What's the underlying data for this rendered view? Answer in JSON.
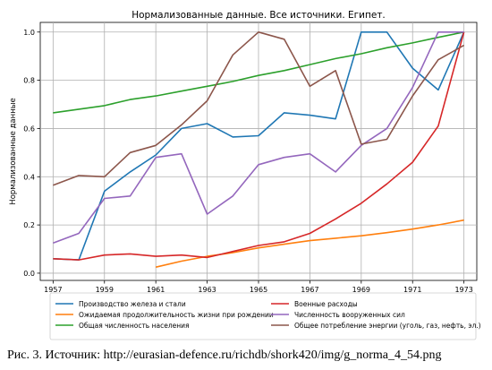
{
  "chart_data": {
    "type": "line",
    "title": "Нормализованные данные. Все источники. Египет.",
    "xlabel": "",
    "ylabel": "Нормализованные данные",
    "xlim": [
      1956.5,
      1973.5
    ],
    "ylim": [
      -0.03,
      1.04
    ],
    "xticks": [
      1957,
      1959,
      1961,
      1963,
      1965,
      1967,
      1969,
      1971,
      1973
    ],
    "yticks": [
      0.0,
      0.2,
      0.4,
      0.6,
      0.8,
      1.0
    ],
    "ytick_labels": [
      "0.0",
      "0.2",
      "0.4",
      "0.6",
      "0.8",
      "1.0"
    ],
    "grid": true,
    "legend_position": "bottom, two columns",
    "series": [
      {
        "name": "Производство железа и стали",
        "color": "#1f77b4",
        "x": [
          1957,
          1958,
          1959,
          1960,
          1961,
          1962,
          1963,
          1964,
          1965,
          1966,
          1967,
          1968,
          1969,
          1970,
          1971,
          1972,
          1973
        ],
        "y": [
          0.06,
          0.055,
          0.34,
          0.42,
          0.49,
          0.6,
          0.62,
          0.565,
          0.57,
          0.665,
          0.655,
          0.64,
          1.0,
          1.0,
          0.85,
          0.76,
          1.0
        ]
      },
      {
        "name": "Ожидаемая продолжительность жизни при рождении",
        "color": "#ff7f0e",
        "x": [
          1961,
          1962,
          1963,
          1964,
          1965,
          1966,
          1967,
          1968,
          1969,
          1970,
          1971,
          1972,
          1973
        ],
        "y": [
          0.025,
          0.05,
          0.07,
          0.085,
          0.105,
          0.12,
          0.135,
          0.145,
          0.155,
          0.168,
          0.183,
          0.2,
          0.22
        ]
      },
      {
        "name": "Общая численность населения",
        "color": "#2ca02c",
        "x": [
          1957,
          1958,
          1959,
          1960,
          1961,
          1962,
          1963,
          1964,
          1965,
          1966,
          1967,
          1968,
          1969,
          1970,
          1971,
          1972,
          1973
        ],
        "y": [
          0.665,
          0.68,
          0.695,
          0.72,
          0.735,
          0.755,
          0.775,
          0.795,
          0.82,
          0.84,
          0.865,
          0.89,
          0.91,
          0.935,
          0.955,
          0.978,
          1.0
        ]
      },
      {
        "name": "Военные расходы",
        "color": "#d62728",
        "x": [
          1957,
          1958,
          1959,
          1960,
          1961,
          1962,
          1963,
          1964,
          1965,
          1966,
          1967,
          1968,
          1969,
          1970,
          1971,
          1972,
          1973
        ],
        "y": [
          0.06,
          0.055,
          0.075,
          0.08,
          0.07,
          0.075,
          0.065,
          0.09,
          0.115,
          0.13,
          0.165,
          0.225,
          0.29,
          0.37,
          0.46,
          0.61,
          1.0
        ]
      },
      {
        "name": "Численность вооруженных сил",
        "color": "#9467bd",
        "x": [
          1957,
          1958,
          1959,
          1960,
          1961,
          1962,
          1963,
          1964,
          1965,
          1966,
          1967,
          1968,
          1969,
          1970,
          1971,
          1972,
          1973
        ],
        "y": [
          0.125,
          0.165,
          0.31,
          0.32,
          0.48,
          0.495,
          0.245,
          0.32,
          0.45,
          0.48,
          0.495,
          0.42,
          0.53,
          0.6,
          0.77,
          1.0,
          1.0
        ]
      },
      {
        "name": "Общее потребление энергии (уголь, газ, нефть, эл.)",
        "color": "#8c564b",
        "x": [
          1957,
          1958,
          1959,
          1960,
          1961,
          1962,
          1963,
          1964,
          1965,
          1966,
          1967,
          1968,
          1969,
          1970,
          1971,
          1972,
          1973
        ],
        "y": [
          0.365,
          0.405,
          0.4,
          0.5,
          0.53,
          0.615,
          0.715,
          0.905,
          1.0,
          0.97,
          0.775,
          0.84,
          0.535,
          0.555,
          0.735,
          0.885,
          0.945
        ]
      }
    ]
  },
  "caption": "Рис. 3. Источник: http://eurasian-defence.ru/richdb/shork420/img/g_norma_4_54.png"
}
